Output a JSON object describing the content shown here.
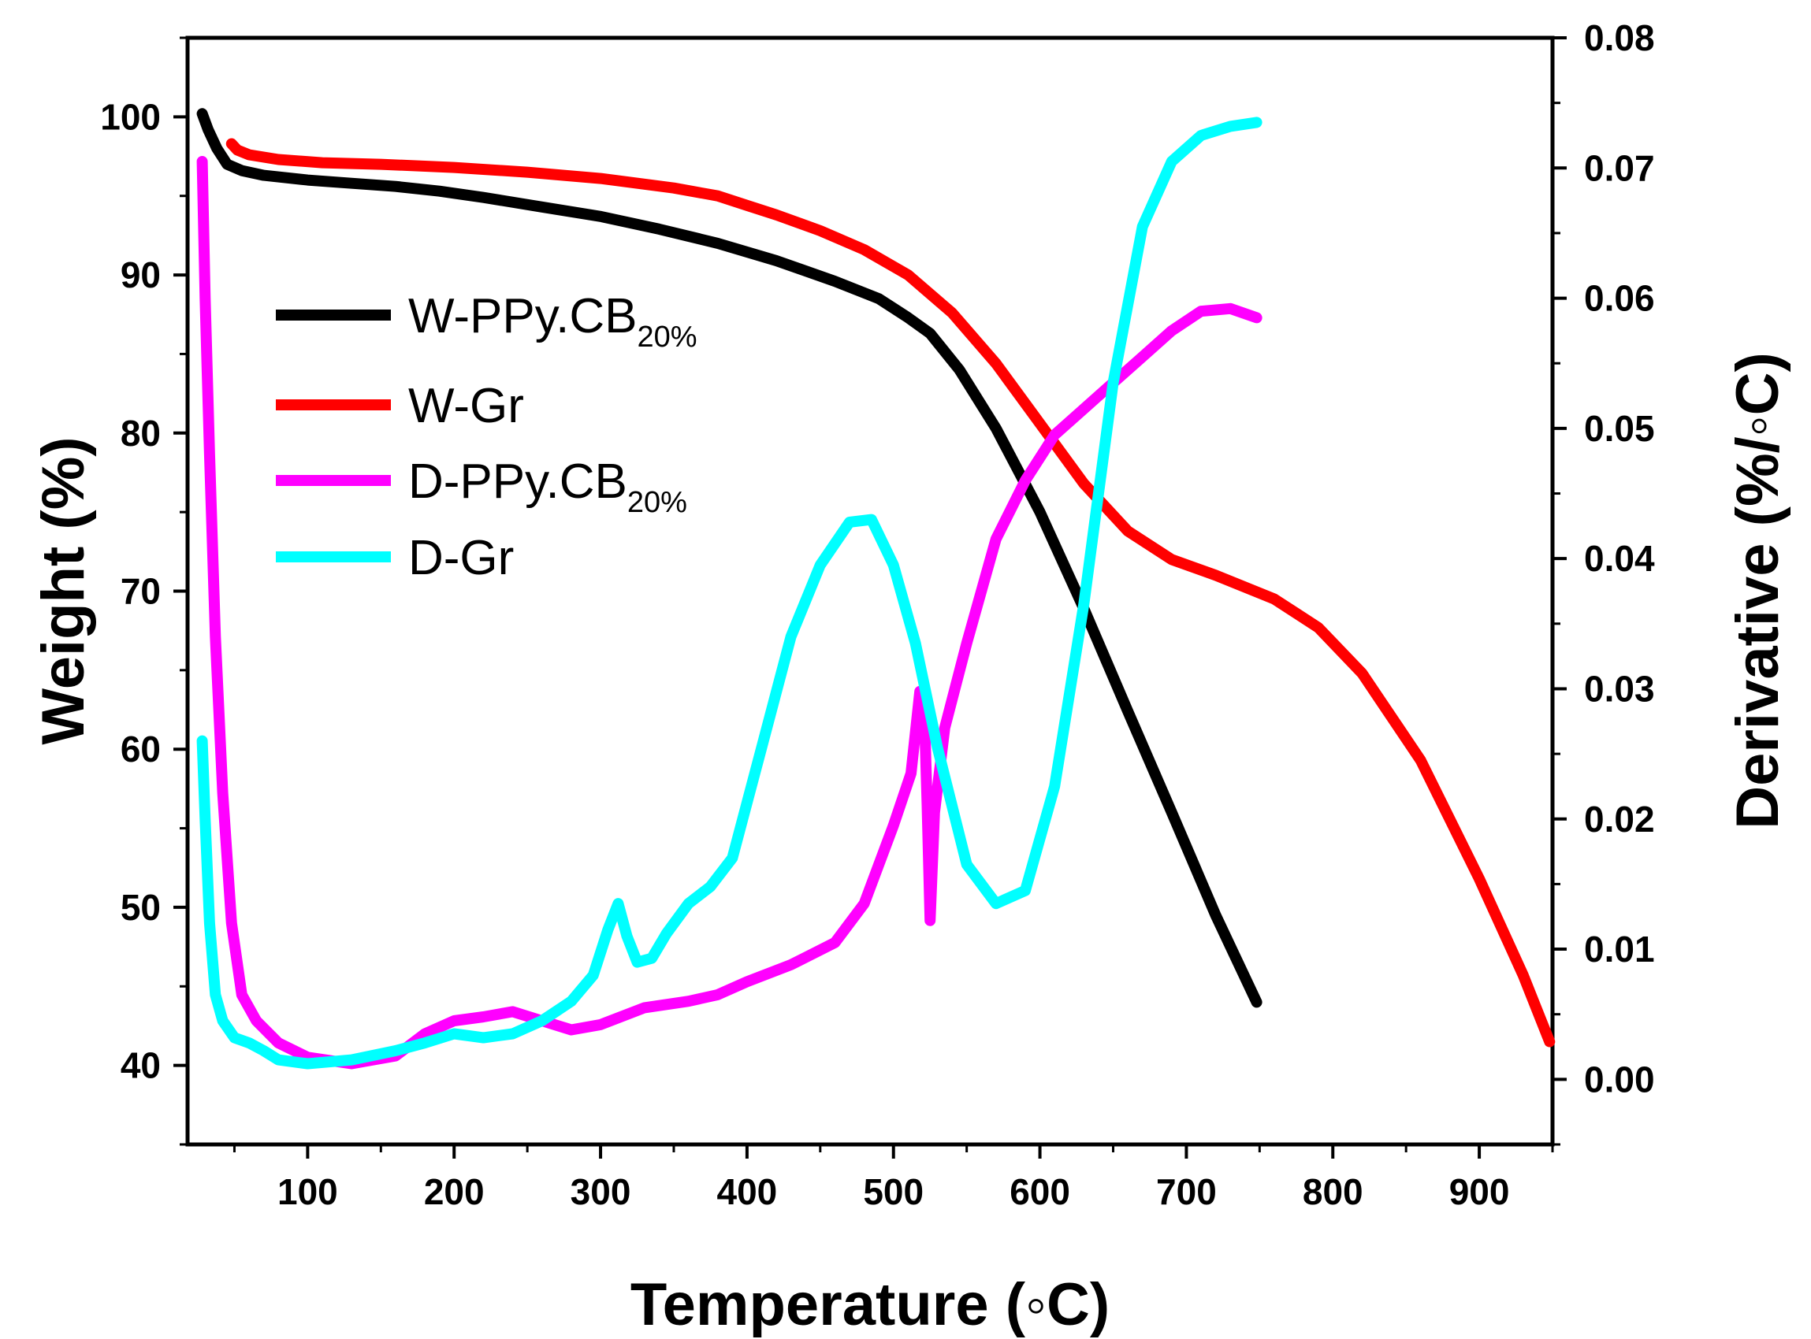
{
  "chart_data": {
    "type": "line",
    "title": "",
    "xlabel": "Temperature (◦C)",
    "ylabel_left": "Weight (%)",
    "ylabel_right": "Derivative (%/◦C)",
    "xlim": [
      18,
      950
    ],
    "ylim_left": [
      35,
      105
    ],
    "ylim_right": [
      -0.005,
      0.08
    ],
    "x_ticks": [
      100,
      200,
      300,
      400,
      500,
      600,
      700,
      800,
      900
    ],
    "y_left_ticks": [
      40,
      50,
      60,
      70,
      80,
      90,
      100
    ],
    "y_right_ticks": [
      "0.00",
      "0.01",
      "0.02",
      "0.03",
      "0.04",
      "0.05",
      "0.06",
      "0.07",
      "0.08"
    ],
    "legend_position": "upper-left",
    "series": [
      {
        "name": "W-PPy.CB",
        "subscript": "20%",
        "axis": "left",
        "color": "#000000",
        "x": [
          28,
          32,
          38,
          45,
          55,
          70,
          100,
          130,
          160,
          190,
          220,
          260,
          300,
          340,
          380,
          420,
          460,
          490,
          510,
          525,
          545,
          570,
          600,
          630,
          660,
          690,
          720,
          748
        ],
        "y": [
          100.2,
          99.2,
          98.0,
          97.0,
          96.6,
          96.3,
          96.0,
          95.8,
          95.6,
          95.3,
          94.9,
          94.3,
          93.7,
          92.9,
          92.0,
          90.9,
          89.6,
          88.5,
          87.3,
          86.3,
          84.0,
          80.3,
          75.0,
          68.9,
          62.4,
          56.0,
          49.5,
          44.0
        ]
      },
      {
        "name": "W-Gr",
        "subscript": "",
        "axis": "left",
        "color": "#ff0000",
        "x": [
          48,
          52,
          60,
          80,
          110,
          150,
          200,
          250,
          300,
          350,
          380,
          400,
          420,
          450,
          480,
          510,
          540,
          570,
          600,
          630,
          660,
          690,
          720,
          760,
          790,
          820,
          860,
          900,
          930,
          948
        ],
        "y": [
          98.3,
          97.9,
          97.6,
          97.3,
          97.1,
          97.0,
          96.8,
          96.5,
          96.1,
          95.5,
          95.0,
          94.4,
          93.8,
          92.8,
          91.6,
          90.0,
          87.6,
          84.4,
          80.6,
          76.8,
          73.8,
          72.0,
          71.0,
          69.5,
          67.7,
          64.8,
          59.3,
          51.8,
          45.7,
          41.5
        ]
      },
      {
        "name": "D-PPy.CB",
        "subscript": "20%",
        "axis": "right",
        "color": "#ff00ff",
        "x": [
          28,
          30,
          33,
          37,
          42,
          48,
          55,
          65,
          80,
          100,
          130,
          160,
          180,
          200,
          220,
          240,
          260,
          280,
          300,
          330,
          360,
          380,
          400,
          430,
          460,
          480,
          500,
          512,
          518,
          521,
          523,
          525,
          528,
          535,
          550,
          570,
          590,
          610,
          630,
          650,
          670,
          690,
          710,
          730,
          748
        ],
        "y": [
          0.0705,
          0.06,
          0.048,
          0.034,
          0.022,
          0.012,
          0.0065,
          0.0045,
          0.0028,
          0.0017,
          0.0012,
          0.0018,
          0.0035,
          0.0045,
          0.0048,
          0.0052,
          0.0045,
          0.0038,
          0.0042,
          0.0055,
          0.006,
          0.0065,
          0.0075,
          0.0088,
          0.0105,
          0.0135,
          0.0195,
          0.0235,
          0.0298,
          0.0285,
          0.021,
          0.0122,
          0.0205,
          0.027,
          0.0335,
          0.0415,
          0.046,
          0.0495,
          0.0515,
          0.0535,
          0.0555,
          0.0575,
          0.059,
          0.0592,
          0.0585
        ]
      },
      {
        "name": "D-Gr",
        "subscript": "",
        "axis": "right",
        "color": "#00ffff",
        "x": [
          28,
          30,
          33,
          37,
          42,
          50,
          60,
          70,
          80,
          100,
          130,
          160,
          180,
          200,
          220,
          240,
          260,
          280,
          295,
          305,
          312,
          318,
          325,
          335,
          345,
          360,
          375,
          390,
          410,
          430,
          450,
          470,
          485,
          500,
          515,
          530,
          550,
          570,
          590,
          610,
          630,
          650,
          670,
          690,
          710,
          730,
          748
        ],
        "y": [
          0.026,
          0.02,
          0.012,
          0.0065,
          0.0045,
          0.0032,
          0.0028,
          0.0022,
          0.0015,
          0.0012,
          0.0015,
          0.0022,
          0.0028,
          0.0035,
          0.0032,
          0.0035,
          0.0045,
          0.006,
          0.008,
          0.0115,
          0.0135,
          0.011,
          0.009,
          0.0093,
          0.0112,
          0.0135,
          0.0148,
          0.017,
          0.0255,
          0.034,
          0.0395,
          0.0428,
          0.043,
          0.0395,
          0.0335,
          0.0255,
          0.0165,
          0.0135,
          0.0145,
          0.0225,
          0.0365,
          0.0535,
          0.0655,
          0.0705,
          0.0725,
          0.0732,
          0.0735
        ]
      }
    ]
  }
}
